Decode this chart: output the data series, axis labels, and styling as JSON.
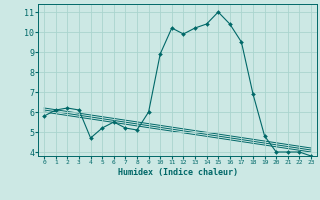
{
  "xlabel": "Humidex (Indice chaleur)",
  "background_color": "#cce8e4",
  "grid_color": "#aad4ce",
  "line_color": "#006868",
  "marker_color": "#006868",
  "xlim": [
    -0.5,
    23.5
  ],
  "ylim": [
    3.8,
    11.4
  ],
  "yticks": [
    4,
    5,
    6,
    7,
    8,
    9,
    10,
    11
  ],
  "xticks": [
    0,
    1,
    2,
    3,
    4,
    5,
    6,
    7,
    8,
    9,
    10,
    11,
    12,
    13,
    14,
    15,
    16,
    17,
    18,
    19,
    20,
    21,
    22,
    23
  ],
  "main_series": {
    "x": [
      0,
      1,
      2,
      3,
      4,
      5,
      6,
      7,
      8,
      9,
      10,
      11,
      12,
      13,
      14,
      15,
      16,
      17,
      18,
      19,
      20,
      21,
      22,
      23
    ],
    "y": [
      5.8,
      6.1,
      6.2,
      6.1,
      4.7,
      5.2,
      5.5,
      5.2,
      5.1,
      6.0,
      8.9,
      10.2,
      9.9,
      10.2,
      10.4,
      11.0,
      10.4,
      9.5,
      6.9,
      4.8,
      4.0,
      4.0,
      4.0,
      3.8
    ]
  },
  "trend_lines": [
    {
      "x": [
        0,
        23
      ],
      "y": [
        6.0,
        4.0
      ]
    },
    {
      "x": [
        0,
        23
      ],
      "y": [
        6.1,
        4.1
      ]
    },
    {
      "x": [
        0,
        23
      ],
      "y": [
        6.2,
        4.2
      ]
    }
  ]
}
